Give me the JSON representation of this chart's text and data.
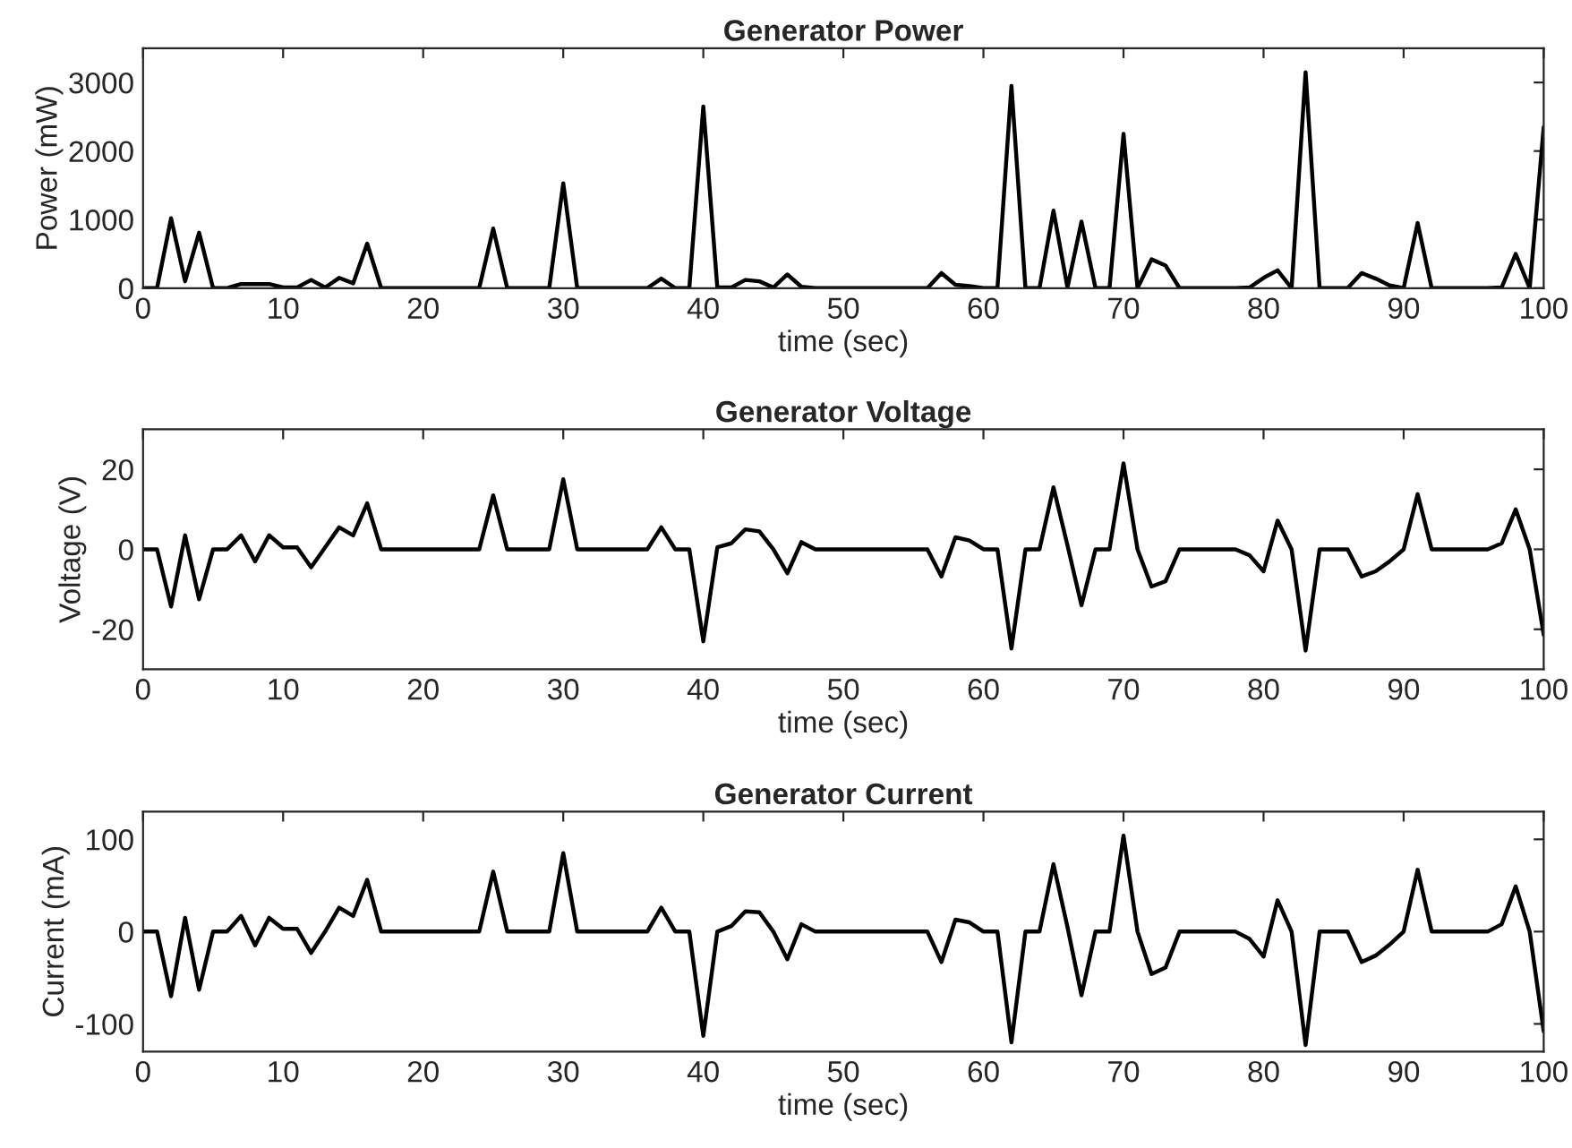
{
  "chart_data": [
    {
      "type": "line",
      "title": "Generator Power",
      "xlabel": "time (sec)",
      "ylabel": "Power (mW)",
      "x": [
        0,
        1,
        2,
        3,
        4,
        5,
        6,
        7,
        8,
        9,
        10,
        11,
        12,
        13,
        14,
        15,
        16,
        17,
        18,
        19,
        20,
        21,
        22,
        23,
        24,
        25,
        26,
        27,
        28,
        29,
        30,
        31,
        32,
        33,
        34,
        35,
        36,
        37,
        38,
        39,
        40,
        41,
        42,
        43,
        44,
        45,
        46,
        47,
        48,
        49,
        50,
        51,
        52,
        53,
        54,
        55,
        56,
        57,
        58,
        59,
        60,
        61,
        62,
        63,
        64,
        65,
        66,
        67,
        68,
        69,
        70,
        71,
        72,
        73,
        74,
        75,
        76,
        77,
        78,
        79,
        80,
        81,
        82,
        83,
        84,
        85,
        86,
        87,
        88,
        89,
        90,
        91,
        92,
        93,
        94,
        95,
        96,
        97,
        98,
        99,
        100
      ],
      "series": [
        {
          "color": "#000000",
          "values": [
            0,
            0,
            1020,
            100,
            810,
            0,
            0,
            60,
            60,
            60,
            10,
            10,
            120,
            10,
            150,
            70,
            650,
            0,
            0,
            0,
            0,
            0,
            0,
            0,
            0,
            870,
            0,
            0,
            0,
            0,
            1530,
            0,
            0,
            0,
            0,
            0,
            0,
            140,
            0,
            0,
            2650,
            10,
            10,
            120,
            100,
            10,
            200,
            20,
            0,
            0,
            0,
            0,
            0,
            0,
            0,
            0,
            0,
            220,
            50,
            30,
            0,
            0,
            2950,
            0,
            0,
            1130,
            10,
            970,
            0,
            0,
            2250,
            0,
            420,
            330,
            0,
            0,
            0,
            0,
            0,
            10,
            150,
            260,
            0,
            3150,
            0,
            0,
            0,
            220,
            140,
            40,
            0,
            950,
            0,
            0,
            0,
            0,
            0,
            10,
            500,
            0,
            2350
          ]
        }
      ],
      "xlim": [
        0,
        100
      ],
      "ylim": [
        0,
        3500
      ],
      "xticks": [
        0,
        10,
        20,
        30,
        40,
        50,
        60,
        70,
        80,
        90,
        100
      ],
      "yticks": [
        0,
        1000,
        2000,
        3000
      ]
    },
    {
      "type": "line",
      "title": "Generator Voltage",
      "xlabel": "time (sec)",
      "ylabel": "Voltage (V)",
      "x": [
        0,
        1,
        2,
        3,
        4,
        5,
        6,
        7,
        8,
        9,
        10,
        11,
        12,
        13,
        14,
        15,
        16,
        17,
        18,
        19,
        20,
        21,
        22,
        23,
        24,
        25,
        26,
        27,
        28,
        29,
        30,
        31,
        32,
        33,
        34,
        35,
        36,
        37,
        38,
        39,
        40,
        41,
        42,
        43,
        44,
        45,
        46,
        47,
        48,
        49,
        50,
        51,
        52,
        53,
        54,
        55,
        56,
        57,
        58,
        59,
        60,
        61,
        62,
        63,
        64,
        65,
        66,
        67,
        68,
        69,
        70,
        71,
        72,
        73,
        74,
        75,
        76,
        77,
        78,
        79,
        80,
        81,
        82,
        83,
        84,
        85,
        86,
        87,
        88,
        89,
        90,
        91,
        92,
        93,
        94,
        95,
        96,
        97,
        98,
        99,
        100
      ],
      "series": [
        {
          "color": "#000000",
          "values": [
            0,
            0,
            -14.3,
            3.5,
            -12.5,
            0,
            0,
            3.5,
            -3,
            3.5,
            0.5,
            0.5,
            -4.5,
            0.5,
            5.5,
            3.5,
            11.5,
            0,
            0,
            0,
            0,
            0,
            0,
            0,
            0,
            13.5,
            0,
            0,
            0,
            0,
            17.5,
            0,
            0,
            0,
            0,
            0,
            0,
            5.5,
            0,
            0,
            -23,
            0.5,
            1.5,
            5,
            4.5,
            0,
            -6,
            1.8,
            0,
            0,
            0,
            0,
            0,
            0,
            0,
            0,
            0,
            -6.8,
            3,
            2.2,
            0,
            0,
            -24.8,
            0,
            0,
            15.5,
            1,
            -14,
            0,
            0,
            21.5,
            0,
            -9.3,
            -8,
            0,
            0,
            0,
            0,
            0,
            -1.5,
            -5.5,
            7.2,
            0,
            -25.3,
            0,
            0,
            0,
            -6.8,
            -5.5,
            -3,
            0,
            13.8,
            0,
            0,
            0,
            0,
            0,
            1.5,
            10,
            0,
            -21.4
          ]
        }
      ],
      "xlim": [
        0,
        100
      ],
      "ylim": [
        -30,
        30
      ],
      "xticks": [
        0,
        10,
        20,
        30,
        40,
        50,
        60,
        70,
        80,
        90,
        100
      ],
      "yticks": [
        -20,
        0,
        20
      ]
    },
    {
      "type": "line",
      "title": "Generator Current",
      "xlabel": "time (sec)",
      "ylabel": "Current (mA)",
      "x": [
        0,
        1,
        2,
        3,
        4,
        5,
        6,
        7,
        8,
        9,
        10,
        11,
        12,
        13,
        14,
        15,
        16,
        17,
        18,
        19,
        20,
        21,
        22,
        23,
        24,
        25,
        26,
        27,
        28,
        29,
        30,
        31,
        32,
        33,
        34,
        35,
        36,
        37,
        38,
        39,
        40,
        41,
        42,
        43,
        44,
        45,
        46,
        47,
        48,
        49,
        50,
        51,
        52,
        53,
        54,
        55,
        56,
        57,
        58,
        59,
        60,
        61,
        62,
        63,
        64,
        65,
        66,
        67,
        68,
        69,
        70,
        71,
        72,
        73,
        74,
        75,
        76,
        77,
        78,
        79,
        80,
        81,
        82,
        83,
        84,
        85,
        86,
        87,
        88,
        89,
        90,
        91,
        92,
        93,
        94,
        95,
        96,
        97,
        98,
        99,
        100
      ],
      "series": [
        {
          "color": "#000000",
          "values": [
            0,
            0,
            -70,
            15,
            -63,
            0,
            0,
            17,
            -15,
            15,
            3,
            3,
            -23,
            0,
            26,
            17,
            56,
            0,
            0,
            0,
            0,
            0,
            0,
            0,
            0,
            65,
            0,
            0,
            0,
            0,
            85,
            0,
            0,
            0,
            0,
            0,
            0,
            26,
            0,
            0,
            -113,
            0,
            6,
            22,
            21,
            0,
            -30,
            8,
            0,
            0,
            0,
            0,
            0,
            0,
            0,
            0,
            0,
            -33,
            13,
            10,
            0,
            0,
            -120,
            0,
            0,
            73,
            5,
            -69,
            0,
            0,
            104,
            0,
            -46,
            -39,
            0,
            0,
            0,
            0,
            0,
            -8,
            -27,
            34,
            0,
            -123,
            0,
            0,
            0,
            -33,
            -26,
            -14,
            0,
            67,
            0,
            0,
            0,
            0,
            0,
            8,
            49,
            0,
            -108
          ]
        }
      ],
      "xlim": [
        0,
        100
      ],
      "ylim": [
        -130,
        130
      ],
      "xticks": [
        0,
        10,
        20,
        30,
        40,
        50,
        60,
        70,
        80,
        90,
        100
      ],
      "yticks": [
        -100,
        0,
        100
      ]
    }
  ]
}
